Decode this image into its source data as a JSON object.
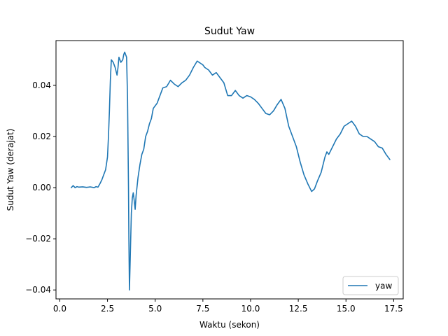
{
  "chart_data": {
    "type": "line",
    "title": "Sudut Yaw",
    "xlabel": "Waktu (sekon)",
    "ylabel": "Sudut Yaw (derajat)",
    "xlim": [
      -0.2,
      18.0
    ],
    "ylim": [
      -0.0435,
      0.0575
    ],
    "x_ticks": [
      0.0,
      2.5,
      5.0,
      7.5,
      10.0,
      12.5,
      15.0,
      17.5
    ],
    "x_tick_labels": [
      "0.0",
      "2.5",
      "5.0",
      "7.5",
      "10.0",
      "12.5",
      "15.0",
      "17.5"
    ],
    "y_ticks": [
      -0.04,
      -0.02,
      0.0,
      0.02,
      0.04
    ],
    "y_tick_labels": [
      "−0.04",
      "−0.02",
      "0.00",
      "0.02",
      "0.04"
    ],
    "grid": false,
    "legend": {
      "position": "lower-right",
      "entries": [
        "yaw"
      ]
    },
    "series": [
      {
        "name": "yaw",
        "color": "#1f77b4",
        "x": [
          0.6,
          0.7,
          0.8,
          0.9,
          1.0,
          1.2,
          1.4,
          1.6,
          1.8,
          1.9,
          2.0,
          2.1,
          2.2,
          2.3,
          2.4,
          2.5,
          2.55,
          2.6,
          2.65,
          2.7,
          2.8,
          2.9,
          3.0,
          3.05,
          3.1,
          3.2,
          3.3,
          3.35,
          3.4,
          3.5,
          3.55,
          3.6,
          3.62,
          3.65,
          3.7,
          3.75,
          3.8,
          3.85,
          3.9,
          3.95,
          4.0,
          4.1,
          4.2,
          4.3,
          4.4,
          4.5,
          4.6,
          4.7,
          4.8,
          4.9,
          5.0,
          5.1,
          5.2,
          5.4,
          5.6,
          5.8,
          6.0,
          6.2,
          6.4,
          6.6,
          6.8,
          7.0,
          7.2,
          7.3,
          7.4,
          7.5,
          7.6,
          7.8,
          8.0,
          8.2,
          8.4,
          8.6,
          8.8,
          9.0,
          9.2,
          9.4,
          9.6,
          9.8,
          10.0,
          10.2,
          10.4,
          10.6,
          10.8,
          11.0,
          11.2,
          11.4,
          11.6,
          11.8,
          12.0,
          12.2,
          12.4,
          12.6,
          12.8,
          13.0,
          13.2,
          13.35,
          13.5,
          13.7,
          13.9,
          14.0,
          14.1,
          14.3,
          14.5,
          14.7,
          14.9,
          15.1,
          15.3,
          15.5,
          15.7,
          15.9,
          16.1,
          16.3,
          16.5,
          16.7,
          16.9,
          17.1,
          17.3
        ],
        "y": [
          0.0,
          0.0008,
          0.0,
          0.0004,
          0.0002,
          0.0003,
          0.0001,
          0.0003,
          0.0,
          0.0004,
          0.0002,
          0.0015,
          0.003,
          0.005,
          0.007,
          0.012,
          0.02,
          0.03,
          0.042,
          0.05,
          0.049,
          0.047,
          0.044,
          0.047,
          0.051,
          0.049,
          0.05,
          0.052,
          0.053,
          0.051,
          0.035,
          0.0,
          -0.02,
          -0.04,
          -0.025,
          -0.01,
          -0.004,
          -0.002,
          -0.005,
          -0.0085,
          -0.003,
          0.004,
          0.009,
          0.013,
          0.015,
          0.02,
          0.022,
          0.025,
          0.027,
          0.031,
          0.032,
          0.033,
          0.035,
          0.039,
          0.0395,
          0.042,
          0.0405,
          0.0395,
          0.041,
          0.042,
          0.044,
          0.047,
          0.0495,
          0.049,
          0.0485,
          0.048,
          0.047,
          0.046,
          0.044,
          0.045,
          0.043,
          0.041,
          0.036,
          0.036,
          0.038,
          0.036,
          0.035,
          0.036,
          0.0355,
          0.0345,
          0.033,
          0.031,
          0.029,
          0.0285,
          0.03,
          0.0325,
          0.0345,
          0.031,
          0.024,
          0.02,
          0.016,
          0.01,
          0.005,
          0.0015,
          -0.0015,
          -0.0005,
          0.0025,
          0.006,
          0.012,
          0.014,
          0.013,
          0.016,
          0.019,
          0.021,
          0.024,
          0.025,
          0.026,
          0.024,
          0.021,
          0.02,
          0.02,
          0.019,
          0.018,
          0.016,
          0.0155,
          0.013,
          0.011
        ]
      }
    ]
  }
}
